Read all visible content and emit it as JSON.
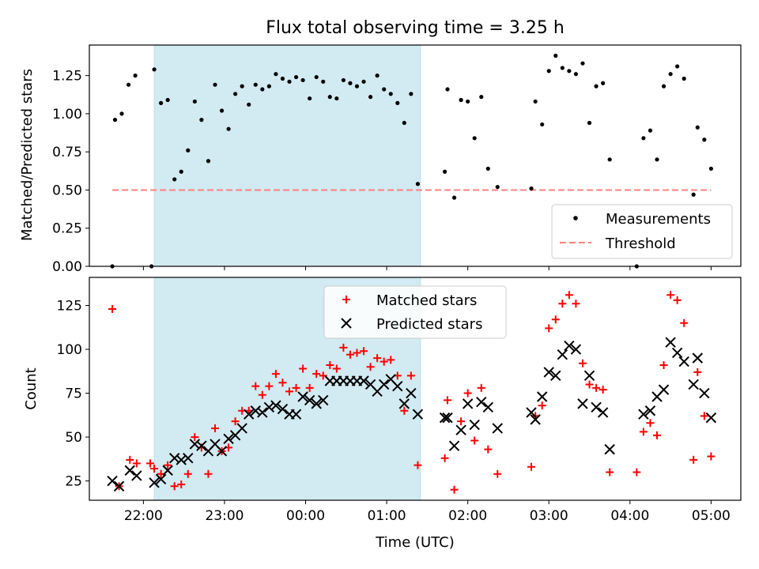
{
  "title": "Flux total observing time = 3.25 h",
  "colors": {
    "shade": "#add8e6",
    "measurement": "#000000",
    "threshold": "#ff7f7f",
    "matched": "#ff0000",
    "predicted": "#000000"
  },
  "chart_data": [
    {
      "type": "scatter",
      "xlabel": "",
      "ylabel": "Matched/Predicted stars",
      "x_range": [
        "21:20",
        "05:22"
      ],
      "ylim": [
        0,
        1.45
      ],
      "y_ticks": [
        0.0,
        0.25,
        0.5,
        0.75,
        1.0,
        1.25
      ],
      "y_tick_labels": [
        "0.00",
        "0.25",
        "0.50",
        "0.75",
        "1.00",
        "1.25"
      ],
      "shaded_span": [
        "22:08",
        "01:25"
      ],
      "legend": {
        "position": "lower right",
        "entries": [
          "Measurements",
          "Threshold"
        ]
      },
      "threshold": {
        "name": "Threshold",
        "y": 0.5,
        "x": [
          "21:37",
          "05:00"
        ]
      },
      "series": [
        {
          "name": "Measurements",
          "points": [
            [
              "21:37",
              0.0
            ],
            [
              "21:39",
              0.96
            ],
            [
              "21:44",
              1.0
            ],
            [
              "21:49",
              1.19
            ],
            [
              "21:54",
              1.25
            ],
            [
              "22:06",
              0.0
            ],
            [
              "22:08",
              1.29
            ],
            [
              "22:13",
              1.07
            ],
            [
              "22:18",
              1.09
            ],
            [
              "22:23",
              0.57
            ],
            [
              "22:28",
              0.62
            ],
            [
              "22:33",
              0.76
            ],
            [
              "22:38",
              1.08
            ],
            [
              "22:43",
              0.96
            ],
            [
              "22:48",
              0.69
            ],
            [
              "22:53",
              1.19
            ],
            [
              "22:58",
              1.02
            ],
            [
              "23:03",
              0.9
            ],
            [
              "23:08",
              1.13
            ],
            [
              "23:13",
              1.18
            ],
            [
              "23:18",
              1.06
            ],
            [
              "23:23",
              1.19
            ],
            [
              "23:28",
              1.16
            ],
            [
              "23:33",
              1.18
            ],
            [
              "23:38",
              1.26
            ],
            [
              "23:43",
              1.23
            ],
            [
              "23:48",
              1.21
            ],
            [
              "23:53",
              1.24
            ],
            [
              "23:58",
              1.22
            ],
            [
              "00:03",
              1.1
            ],
            [
              "00:08",
              1.24
            ],
            [
              "00:13",
              1.21
            ],
            [
              "00:18",
              1.11
            ],
            [
              "00:23",
              1.1
            ],
            [
              "00:28",
              1.22
            ],
            [
              "00:33",
              1.2
            ],
            [
              "00:38",
              1.18
            ],
            [
              "00:43",
              1.21
            ],
            [
              "00:48",
              1.11
            ],
            [
              "00:53",
              1.25
            ],
            [
              "00:58",
              1.16
            ],
            [
              "01:03",
              1.13
            ],
            [
              "01:08",
              1.07
            ],
            [
              "01:13",
              0.94
            ],
            [
              "01:18",
              1.13
            ],
            [
              "01:23",
              0.54
            ],
            [
              "01:43",
              0.62
            ],
            [
              "01:45",
              1.16
            ],
            [
              "01:50",
              0.45
            ],
            [
              "01:55",
              1.09
            ],
            [
              "02:00",
              1.08
            ],
            [
              "02:05",
              0.84
            ],
            [
              "02:10",
              1.11
            ],
            [
              "02:15",
              0.64
            ],
            [
              "02:22",
              0.52
            ],
            [
              "02:47",
              0.51
            ],
            [
              "02:50",
              1.08
            ],
            [
              "02:55",
              0.93
            ],
            [
              "03:00",
              1.28
            ],
            [
              "03:05",
              1.38
            ],
            [
              "03:10",
              1.3
            ],
            [
              "03:15",
              1.28
            ],
            [
              "03:20",
              1.26
            ],
            [
              "03:25",
              1.33
            ],
            [
              "03:30",
              0.94
            ],
            [
              "03:35",
              1.18
            ],
            [
              "03:40",
              1.2
            ],
            [
              "03:45",
              0.7
            ],
            [
              "04:05",
              0.0
            ],
            [
              "04:10",
              0.84
            ],
            [
              "04:15",
              0.89
            ],
            [
              "04:20",
              0.7
            ],
            [
              "04:25",
              1.18
            ],
            [
              "04:30",
              1.26
            ],
            [
              "04:35",
              1.31
            ],
            [
              "04:40",
              1.23
            ],
            [
              "04:47",
              0.47
            ],
            [
              "04:50",
              0.91
            ],
            [
              "04:55",
              0.83
            ],
            [
              "05:00",
              0.64
            ]
          ]
        }
      ]
    },
    {
      "type": "scatter",
      "xlabel": "Time (UTC)",
      "ylabel": "Count",
      "x_range": [
        "21:20",
        "05:22"
      ],
      "ylim": [
        14,
        141
      ],
      "y_ticks": [
        25,
        50,
        75,
        100,
        125
      ],
      "y_tick_labels": [
        "25",
        "50",
        "75",
        "100",
        "125"
      ],
      "x_ticks": [
        "22:00",
        "23:00",
        "00:00",
        "01:00",
        "02:00",
        "03:00",
        "04:00",
        "05:00"
      ],
      "shaded_span": [
        "22:08",
        "01:25"
      ],
      "legend": {
        "position": "upper center",
        "entries": [
          "Matched stars",
          "Predicted stars"
        ]
      },
      "series": [
        {
          "name": "Matched stars",
          "marker": "+",
          "points": [
            [
              "21:37",
              123
            ],
            [
              "21:42",
              22
            ],
            [
              "21:50",
              37
            ],
            [
              "21:55",
              35
            ],
            [
              "22:05",
              35
            ],
            [
              "22:08",
              32
            ],
            [
              "22:13",
              29
            ],
            [
              "22:18",
              34
            ],
            [
              "22:23",
              22
            ],
            [
              "22:28",
              23
            ],
            [
              "22:33",
              29
            ],
            [
              "22:38",
              50
            ],
            [
              "22:43",
              44
            ],
            [
              "22:48",
              29
            ],
            [
              "22:53",
              55
            ],
            [
              "22:58",
              42
            ],
            [
              "23:03",
              44
            ],
            [
              "23:08",
              59
            ],
            [
              "23:13",
              65
            ],
            [
              "23:18",
              65
            ],
            [
              "23:23",
              79
            ],
            [
              "23:28",
              74
            ],
            [
              "23:33",
              79
            ],
            [
              "23:38",
              86
            ],
            [
              "23:43",
              81
            ],
            [
              "23:48",
              76
            ],
            [
              "23:53",
              78
            ],
            [
              "23:58",
              89
            ],
            [
              "00:03",
              78
            ],
            [
              "00:08",
              86
            ],
            [
              "00:13",
              85
            ],
            [
              "00:18",
              91
            ],
            [
              "00:23",
              89
            ],
            [
              "00:28",
              101
            ],
            [
              "00:33",
              97
            ],
            [
              "00:38",
              98
            ],
            [
              "00:43",
              99
            ],
            [
              "00:48",
              90
            ],
            [
              "00:53",
              95
            ],
            [
              "00:58",
              93
            ],
            [
              "01:03",
              94
            ],
            [
              "01:08",
              85
            ],
            [
              "01:13",
              65
            ],
            [
              "01:18",
              85
            ],
            [
              "01:23",
              34
            ],
            [
              "01:43",
              38
            ],
            [
              "01:45",
              71
            ],
            [
              "01:50",
              20
            ],
            [
              "01:55",
              59
            ],
            [
              "02:00",
              75
            ],
            [
              "02:05",
              48
            ],
            [
              "02:10",
              78
            ],
            [
              "02:15",
              43
            ],
            [
              "02:22",
              29
            ],
            [
              "02:47",
              33
            ],
            [
              "02:50",
              62
            ],
            [
              "02:55",
              68
            ],
            [
              "03:00",
              112
            ],
            [
              "03:05",
              117
            ],
            [
              "03:10",
              126
            ],
            [
              "03:15",
              131
            ],
            [
              "03:20",
              126
            ],
            [
              "03:25",
              92
            ],
            [
              "03:30",
              80
            ],
            [
              "03:35",
              78
            ],
            [
              "03:40",
              77
            ],
            [
              "03:45",
              30
            ],
            [
              "04:05",
              30
            ],
            [
              "04:10",
              53
            ],
            [
              "04:15",
              58
            ],
            [
              "04:20",
              51
            ],
            [
              "04:25",
              91
            ],
            [
              "04:30",
              131
            ],
            [
              "04:35",
              128
            ],
            [
              "04:40",
              115
            ],
            [
              "04:47",
              37
            ],
            [
              "04:50",
              87
            ],
            [
              "04:55",
              62
            ],
            [
              "05:00",
              39
            ]
          ]
        },
        {
          "name": "Predicted stars",
          "marker": "x",
          "points": [
            [
              "21:37",
              25
            ],
            [
              "21:42",
              22
            ],
            [
              "21:50",
              31
            ],
            [
              "21:55",
              28
            ],
            [
              "22:08",
              24
            ],
            [
              "22:13",
              26
            ],
            [
              "22:18",
              31
            ],
            [
              "22:23",
              38
            ],
            [
              "22:28",
              37
            ],
            [
              "22:33",
              38
            ],
            [
              "22:38",
              46
            ],
            [
              "22:43",
              45
            ],
            [
              "22:48",
              42
            ],
            [
              "22:53",
              46
            ],
            [
              "22:58",
              42
            ],
            [
              "23:03",
              49
            ],
            [
              "23:08",
              51
            ],
            [
              "23:13",
              55
            ],
            [
              "23:18",
              63
            ],
            [
              "23:23",
              65
            ],
            [
              "23:28",
              64
            ],
            [
              "23:33",
              67
            ],
            [
              "23:38",
              68
            ],
            [
              "23:43",
              66
            ],
            [
              "23:48",
              63
            ],
            [
              "23:53",
              63
            ],
            [
              "23:58",
              73
            ],
            [
              "00:03",
              71
            ],
            [
              "00:08",
              69
            ],
            [
              "00:13",
              71
            ],
            [
              "00:18",
              82
            ],
            [
              "00:23",
              82
            ],
            [
              "00:28",
              82
            ],
            [
              "00:33",
              82
            ],
            [
              "00:38",
              82
            ],
            [
              "00:43",
              82
            ],
            [
              "00:48",
              80
            ],
            [
              "00:53",
              76
            ],
            [
              "00:58",
              80
            ],
            [
              "01:03",
              83
            ],
            [
              "01:08",
              79
            ],
            [
              "01:13",
              69
            ],
            [
              "01:18",
              75
            ],
            [
              "01:23",
              63
            ],
            [
              "01:43",
              61
            ],
            [
              "01:45",
              61
            ],
            [
              "01:50",
              45
            ],
            [
              "01:55",
              54
            ],
            [
              "02:00",
              69
            ],
            [
              "02:05",
              57
            ],
            [
              "02:10",
              70
            ],
            [
              "02:15",
              67
            ],
            [
              "02:22",
              55
            ],
            [
              "02:47",
              64
            ],
            [
              "02:50",
              60
            ],
            [
              "02:55",
              73
            ],
            [
              "03:00",
              87
            ],
            [
              "03:05",
              85
            ],
            [
              "03:10",
              97
            ],
            [
              "03:15",
              102
            ],
            [
              "03:20",
              100
            ],
            [
              "03:25",
              69
            ],
            [
              "03:30",
              85
            ],
            [
              "03:35",
              67
            ],
            [
              "03:40",
              64
            ],
            [
              "03:45",
              43
            ],
            [
              "04:10",
              63
            ],
            [
              "04:15",
              65
            ],
            [
              "04:20",
              73
            ],
            [
              "04:25",
              77
            ],
            [
              "04:30",
              104
            ],
            [
              "04:35",
              98
            ],
            [
              "04:40",
              93
            ],
            [
              "04:47",
              80
            ],
            [
              "04:50",
              95
            ],
            [
              "04:55",
              75
            ],
            [
              "05:00",
              61
            ]
          ]
        }
      ]
    }
  ]
}
